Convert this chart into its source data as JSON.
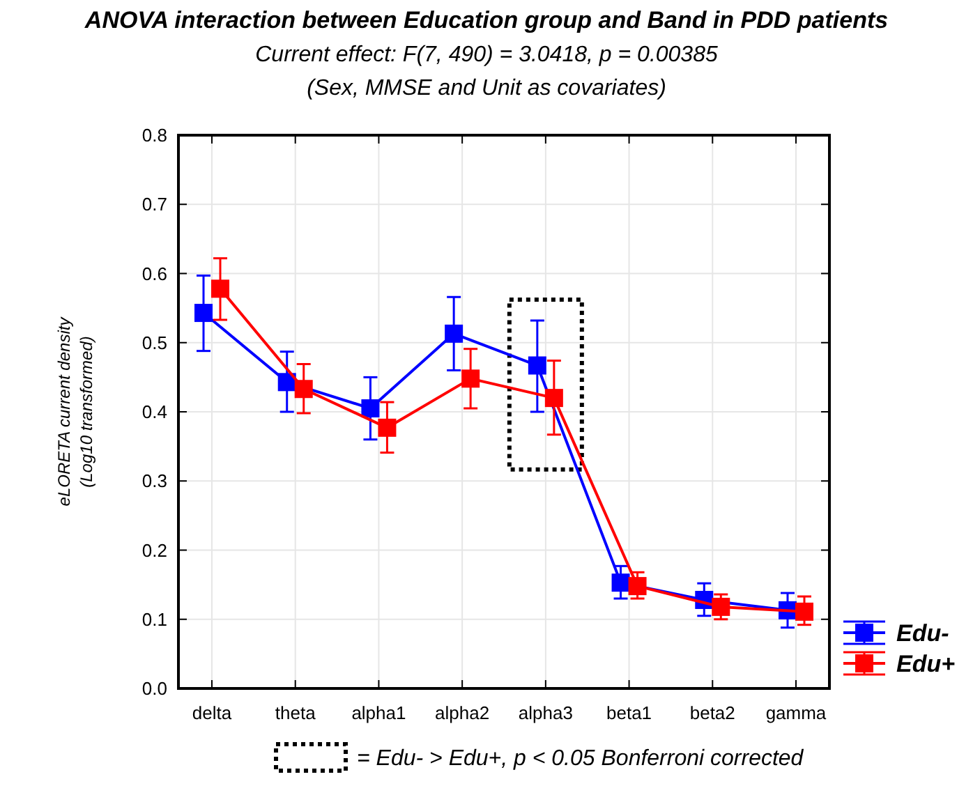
{
  "chart_data": {
    "type": "line",
    "title": "ANOVA interaction between Education group and Band in PDD patients",
    "subtitle": "Current effect: F(7, 490) = 3.0418, p = 0.00385\n(Sex, MMSE and Unit as covariates)",
    "ylabel": "eLORETA current density\n(Log10 transformed)",
    "categories": [
      "delta",
      "theta",
      "alpha1",
      "alpha2",
      "alpha3",
      "beta1",
      "beta2",
      "gamma"
    ],
    "series": [
      {
        "name": "Edu-",
        "color": "#0000ff",
        "values": [
          0.543,
          0.443,
          0.405,
          0.513,
          0.467,
          0.153,
          0.128,
          0.113
        ],
        "errors": [
          [
            0.488,
            0.597
          ],
          [
            0.4,
            0.487
          ],
          [
            0.36,
            0.45
          ],
          [
            0.46,
            0.566
          ],
          [
            0.4,
            0.532
          ],
          [
            0.13,
            0.177
          ],
          [
            0.105,
            0.152
          ],
          [
            0.088,
            0.138
          ]
        ]
      },
      {
        "name": "Edu+",
        "color": "#ff0000",
        "values": [
          0.578,
          0.433,
          0.377,
          0.448,
          0.42,
          0.148,
          0.118,
          0.111
        ],
        "errors": [
          [
            0.533,
            0.622
          ],
          [
            0.398,
            0.469
          ],
          [
            0.341,
            0.414
          ],
          [
            0.405,
            0.491
          ],
          [
            0.367,
            0.474
          ],
          [
            0.13,
            0.168
          ],
          [
            0.1,
            0.136
          ],
          [
            0.092,
            0.133
          ]
        ]
      }
    ],
    "ylim": [
      0,
      0.8
    ],
    "yticks": [
      {
        "value": 0,
        "label": "0.0"
      },
      0.1,
      0.2,
      0.3,
      0.4,
      0.5,
      0.6,
      0.7,
      0.8
    ],
    "grid": true,
    "legend": "bottom right",
    "marker": "square",
    "line_style": "solid",
    "annotations": [
      "= Edu- > Edu+, p < 0.05 Bonferroni corrected"
    ]
  }
}
